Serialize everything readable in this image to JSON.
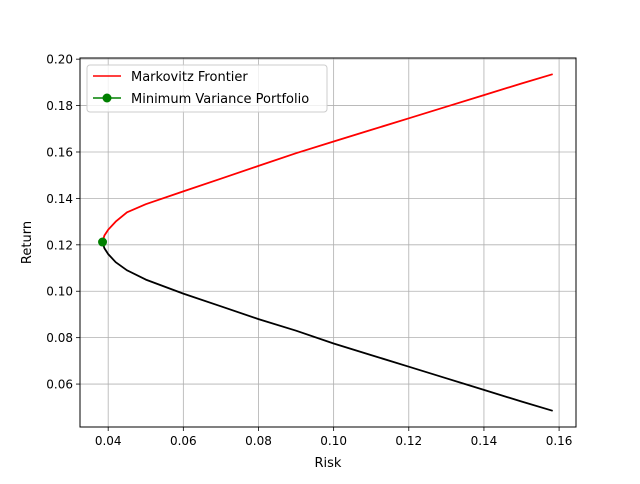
{
  "chart_data": {
    "type": "line",
    "title": "",
    "xlabel": "Risk",
    "ylabel": "Return",
    "xlim": [
      0.0325,
      0.1645
    ],
    "ylim": [
      0.0415,
      0.2005
    ],
    "grid": true,
    "legend_position": "upper-left",
    "x_ticks": [
      0.04,
      0.06,
      0.08,
      0.1,
      0.12,
      0.14,
      0.16
    ],
    "x_tick_labels": [
      "0.04",
      "0.06",
      "0.08",
      "0.10",
      "0.12",
      "0.14",
      "0.16"
    ],
    "y_ticks": [
      0.06,
      0.08,
      0.1,
      0.12,
      0.14,
      0.16,
      0.18,
      0.2
    ],
    "y_tick_labels": [
      "0.06",
      "0.08",
      "0.10",
      "0.12",
      "0.14",
      "0.16",
      "0.18",
      "0.20"
    ],
    "series": [
      {
        "name": "Markovitz Frontier",
        "color": "#ff0000",
        "points": [
          [
            0.0385,
            0.1212
          ],
          [
            0.039,
            0.124
          ],
          [
            0.04,
            0.1265
          ],
          [
            0.042,
            0.13
          ],
          [
            0.045,
            0.134
          ],
          [
            0.05,
            0.1375
          ],
          [
            0.06,
            0.143
          ],
          [
            0.07,
            0.1485
          ],
          [
            0.08,
            0.154
          ],
          [
            0.09,
            0.1595
          ],
          [
            0.1,
            0.1645
          ],
          [
            0.11,
            0.1695
          ],
          [
            0.12,
            0.1745
          ],
          [
            0.13,
            0.1795
          ],
          [
            0.14,
            0.1845
          ],
          [
            0.15,
            0.1895
          ],
          [
            0.1583,
            0.1935
          ]
        ]
      },
      {
        "name": "",
        "color": "#000000",
        "points": [
          [
            0.0385,
            0.1212
          ],
          [
            0.039,
            0.1185
          ],
          [
            0.04,
            0.116
          ],
          [
            0.042,
            0.1125
          ],
          [
            0.045,
            0.109
          ],
          [
            0.05,
            0.105
          ],
          [
            0.06,
            0.099
          ],
          [
            0.07,
            0.0935
          ],
          [
            0.08,
            0.088
          ],
          [
            0.09,
            0.083
          ],
          [
            0.1,
            0.0775
          ],
          [
            0.11,
            0.0725
          ],
          [
            0.12,
            0.0675
          ],
          [
            0.13,
            0.0625
          ],
          [
            0.14,
            0.0575
          ],
          [
            0.15,
            0.0525
          ],
          [
            0.1583,
            0.0485
          ]
        ]
      },
      {
        "name": "Minimum Variance Portfolio",
        "color": "#008000",
        "marker": "circle",
        "points": [
          [
            0.0385,
            0.1212
          ]
        ]
      }
    ]
  }
}
